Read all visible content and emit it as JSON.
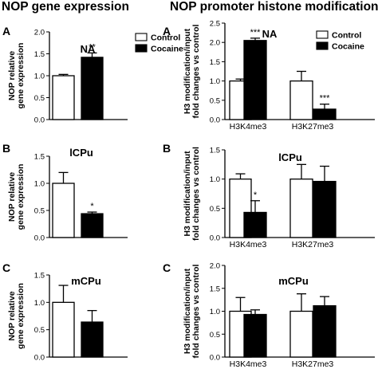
{
  "figure": {
    "left_header": "NOP gene expression",
    "right_header": "NOP promoter histone modifications"
  },
  "chart_data": [
    {
      "id": "gene-NA",
      "type": "bar",
      "panel_letter": "A",
      "title": "NA",
      "ylabel": "NOP relative gene expression",
      "ylabel_lines": [
        "NOP relative",
        "gene expression"
      ],
      "ylim": [
        0,
        2.0
      ],
      "yticks": [
        "0.0",
        "0.5",
        "1.0",
        "1.5",
        "2.0"
      ],
      "categories": [
        ""
      ],
      "series": [
        {
          "name": "Control",
          "values": [
            1.0
          ],
          "errors": [
            0.03
          ],
          "color": "#ffffff"
        },
        {
          "name": "Cocaine",
          "values": [
            1.42
          ],
          "errors": [
            0.1
          ],
          "color": "#000000"
        }
      ],
      "annotations": [
        {
          "series": 1,
          "category": 0,
          "text": "**"
        }
      ],
      "legend": "top-right",
      "legend_items": [
        "Control",
        "Cocaine"
      ]
    },
    {
      "id": "histone-NA",
      "type": "bar",
      "panel_letter": "A",
      "title": "NA",
      "ylabel": "H3 modification/input fold changes vs control",
      "ylabel_lines": [
        "H3 modification/input",
        "fold changes vs control"
      ],
      "ylim": [
        0,
        2.5
      ],
      "yticks": [
        "0.0",
        "0.5",
        "1.0",
        "1.5",
        "2.0",
        "2.5"
      ],
      "categories": [
        "H3K4me3",
        "H3K27me3"
      ],
      "series": [
        {
          "name": "Control",
          "values": [
            1.0,
            1.0
          ],
          "errors": [
            0.05,
            0.25
          ],
          "color": "#ffffff"
        },
        {
          "name": "Cocaine",
          "values": [
            2.05,
            0.27
          ],
          "errors": [
            0.06,
            0.13
          ],
          "color": "#000000"
        }
      ],
      "annotations": [
        {
          "series": 1,
          "category": 0,
          "text": "***"
        },
        {
          "series": 1,
          "category": 1,
          "text": "***"
        }
      ],
      "legend": "top-right",
      "legend_items": [
        "Control",
        "Cocaine"
      ]
    },
    {
      "id": "gene-ICPu",
      "type": "bar",
      "panel_letter": "B",
      "title": "lCPu",
      "ylabel": "NOP relative gene expression",
      "ylabel_lines": [
        "NOP relative",
        "gene expression"
      ],
      "ylim": [
        0,
        1.5
      ],
      "yticks": [
        "0.0",
        "0.5",
        "1.0",
        "1.5"
      ],
      "categories": [
        ""
      ],
      "series": [
        {
          "name": "Control",
          "values": [
            1.0
          ],
          "errors": [
            0.2
          ],
          "color": "#ffffff"
        },
        {
          "name": "Cocaine",
          "values": [
            0.44
          ],
          "errors": [
            0.03
          ],
          "color": "#000000"
        }
      ],
      "annotations": [
        {
          "series": 1,
          "category": 0,
          "text": "*"
        }
      ]
    },
    {
      "id": "histone-ICPu",
      "type": "bar",
      "panel_letter": "B",
      "title": "lCPu",
      "ylabel": "H3 modification/input fold changes vs control",
      "ylabel_lines": [
        "H3 modification/input",
        "fold changes vs control"
      ],
      "ylim": [
        0,
        1.5
      ],
      "yticks": [
        "0.0",
        "0.5",
        "1.0",
        "1.5"
      ],
      "categories": [
        "H3K4me3",
        "H3K27me3"
      ],
      "series": [
        {
          "name": "Control",
          "values": [
            1.0,
            1.0
          ],
          "errors": [
            0.09,
            0.25
          ],
          "color": "#ffffff"
        },
        {
          "name": "Cocaine",
          "values": [
            0.43,
            0.96
          ],
          "errors": [
            0.2,
            0.26
          ],
          "color": "#000000"
        }
      ],
      "annotations": [
        {
          "series": 1,
          "category": 0,
          "text": "*"
        }
      ]
    },
    {
      "id": "gene-mCPu",
      "type": "bar",
      "panel_letter": "C",
      "title": "mCPu",
      "ylabel": "NOP relative gene expression",
      "ylabel_lines": [
        "NOP relative",
        "gene expression"
      ],
      "ylim": [
        0,
        1.5
      ],
      "yticks": [
        "0.0",
        "0.5",
        "1.0",
        "1.5"
      ],
      "categories": [
        ""
      ],
      "series": [
        {
          "name": "Control",
          "values": [
            1.0
          ],
          "errors": [
            0.31
          ],
          "color": "#ffffff"
        },
        {
          "name": "Cocaine",
          "values": [
            0.64
          ],
          "errors": [
            0.21
          ],
          "color": "#000000"
        }
      ],
      "annotations": []
    },
    {
      "id": "histone-mCPu",
      "type": "bar",
      "panel_letter": "C",
      "title": "mCPu",
      "ylabel": "H3 modification/input fold changes vs control",
      "ylabel_lines": [
        "H3 modification/input",
        "fold changes vs control"
      ],
      "ylim": [
        0,
        2.0
      ],
      "yticks": [
        "0.0",
        "0.5",
        "1.0",
        "1.5",
        "2.0"
      ],
      "categories": [
        "H3K4me3",
        "H3K27me3"
      ],
      "series": [
        {
          "name": "Control",
          "values": [
            1.0,
            1.0
          ],
          "errors": [
            0.3,
            0.38
          ],
          "color": "#ffffff"
        },
        {
          "name": "Cocaine",
          "values": [
            0.93,
            1.12
          ],
          "errors": [
            0.1,
            0.2
          ],
          "color": "#000000"
        }
      ],
      "annotations": []
    }
  ]
}
